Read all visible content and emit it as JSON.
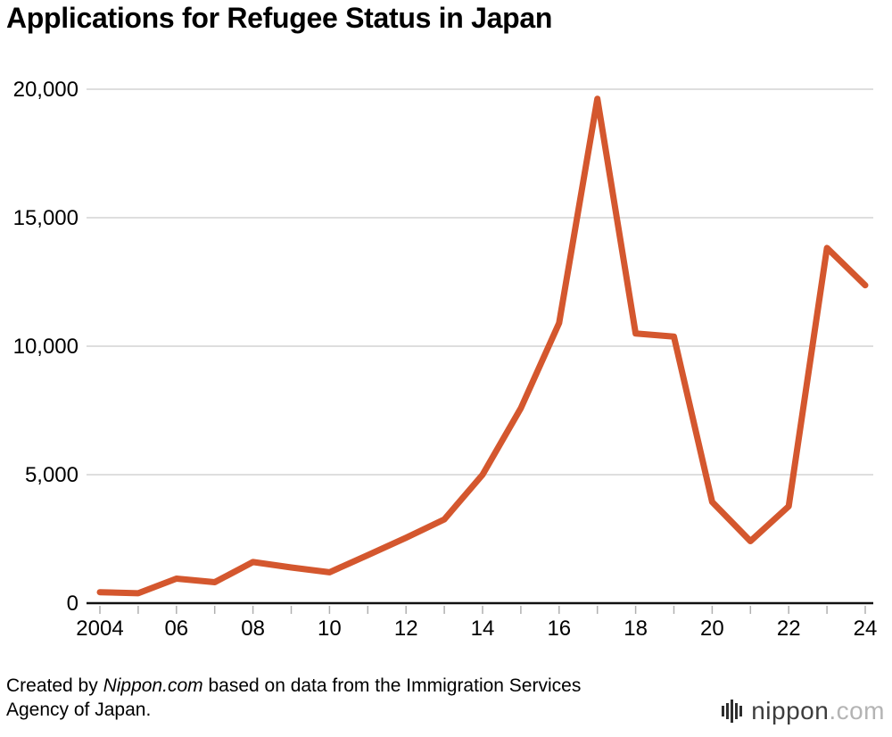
{
  "title": "Applications for Refugee Status in Japan",
  "footer": {
    "prefix": "Created by ",
    "source": "Nippon.com",
    "suffix": " based on data from the Immigration Services Agency of Japan."
  },
  "logo": {
    "name": "nippon",
    "tld": ".com"
  },
  "chart_data": {
    "type": "line",
    "title": "Applications for Refugee Status in Japan",
    "series_name": "Applications for refugee status",
    "x": [
      2004,
      2005,
      2006,
      2007,
      2008,
      2009,
      2010,
      2011,
      2012,
      2013,
      2014,
      2015,
      2016,
      2017,
      2018,
      2019,
      2020,
      2021,
      2022,
      2023,
      2024
    ],
    "values": [
      426,
      384,
      954,
      816,
      1599,
      1388,
      1202,
      1867,
      2545,
      3260,
      5000,
      7586,
      10901,
      19629,
      10493,
      10375,
      3936,
      2413,
      3772,
      13823,
      12373
    ],
    "xlabel": "",
    "ylabel": "",
    "ylim": [
      0,
      20000
    ],
    "y_ticks": [
      0,
      5000,
      10000,
      15000,
      20000
    ],
    "y_tick_labels": [
      "0",
      "5,000",
      "10,000",
      "15,000",
      "20,000"
    ],
    "x_tick_positions": [
      2004,
      2006,
      2008,
      2010,
      2012,
      2014,
      2016,
      2018,
      2020,
      2022,
      2024
    ],
    "x_tick_labels": [
      "2004",
      "06",
      "08",
      "10",
      "12",
      "14",
      "16",
      "18",
      "20",
      "22",
      "24"
    ],
    "grid": true,
    "legend": "none",
    "line_color": "#d4572e",
    "grid_color": "#d3d3d3",
    "axis_color": "#111111",
    "tick_color": "#b0b0b0"
  }
}
